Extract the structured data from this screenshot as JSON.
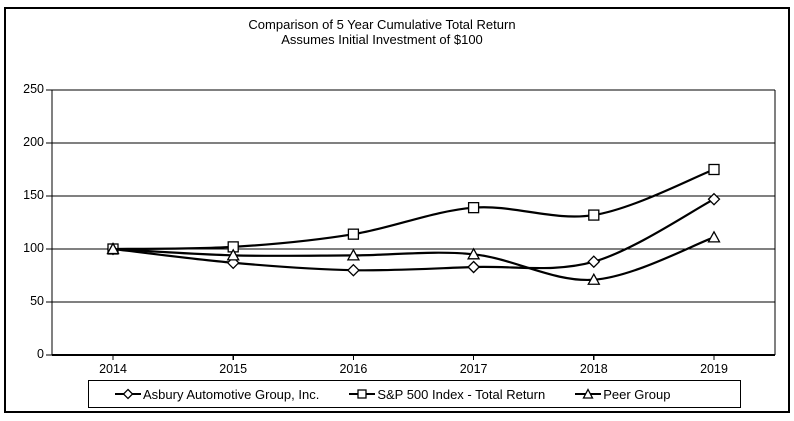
{
  "page": {
    "background_color": "#ffffff",
    "frame_border_color": "#000000"
  },
  "chart_data": {
    "type": "line",
    "title": "Comparison of 5 Year Cumulative Total Return",
    "subtitle": "Assumes Initial Investment of $100",
    "categories": [
      "2014",
      "2015",
      "2016",
      "2017",
      "2018",
      "2019"
    ],
    "series": [
      {
        "name": "Asbury Automotive Group, Inc.",
        "marker": "diamond",
        "values": [
          100,
          87,
          80,
          83,
          88,
          147
        ]
      },
      {
        "name": "S&P 500 Index - Total Return",
        "marker": "square",
        "values": [
          100,
          102,
          114,
          139,
          132,
          175
        ]
      },
      {
        "name": "Peer Group",
        "marker": "triangle",
        "values": [
          100,
          94,
          94,
          95,
          71,
          111
        ]
      }
    ],
    "y_ticks": [
      0,
      50,
      100,
      150,
      200,
      250
    ],
    "ylim": [
      0,
      250
    ],
    "xlabel": "",
    "ylabel": "",
    "grid": true,
    "smoothed": true,
    "legend_position": "bottom",
    "line_color": "#000000",
    "marker_fill": "#ffffff",
    "text_color": "#000000"
  }
}
